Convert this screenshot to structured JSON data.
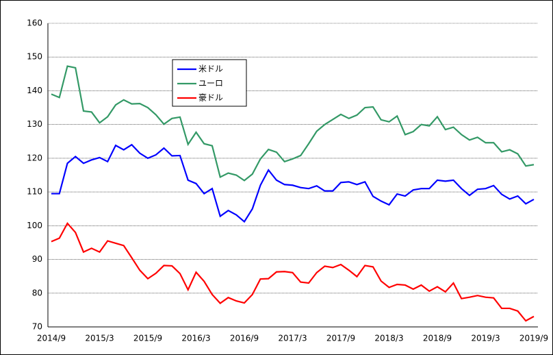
{
  "chart_data": {
    "type": "line",
    "categories": [
      "2014/9",
      null,
      null,
      null,
      null,
      null,
      "2015/3",
      null,
      null,
      null,
      null,
      null,
      "2015/9",
      null,
      null,
      null,
      null,
      null,
      "2016/3",
      null,
      null,
      null,
      null,
      null,
      "2016/9",
      null,
      null,
      null,
      null,
      null,
      "2017/3",
      null,
      null,
      null,
      null,
      null,
      "2017/9",
      null,
      null,
      null,
      null,
      null,
      "2018/3",
      null,
      null,
      null,
      null,
      null,
      "2018/9",
      null,
      null,
      null,
      null,
      null,
      "2019/3",
      null,
      null,
      null,
      null,
      null,
      "2019/9"
    ],
    "series": [
      {
        "name": "米ドル",
        "color": "#0000ff",
        "values": [
          109.5,
          109.5,
          118.5,
          120.5,
          118.5,
          119.5,
          120.2,
          119,
          123.8,
          122.5,
          124,
          121.5,
          120,
          121,
          123,
          120.7,
          120.8,
          113.5,
          112.5,
          109.5,
          111,
          102.8,
          104.5,
          103.2,
          101.2,
          105,
          112,
          116.5,
          113.5,
          112.2,
          112,
          111.3,
          111,
          111.8,
          110.3,
          110.3,
          112.8,
          113,
          112.2,
          113,
          108.7,
          107.3,
          106.2,
          109.4,
          108.8,
          110.6,
          111,
          111,
          113.5,
          113.2,
          113.5,
          111,
          109,
          110.8,
          111,
          111.9,
          109.3,
          107.9,
          108.8,
          106.5,
          107.8
        ]
      },
      {
        "name": "ユーロ",
        "color": "#339966",
        "values": [
          139,
          138,
          147.3,
          146.8,
          134,
          133.7,
          130.5,
          132.3,
          135.8,
          137.3,
          136.1,
          136.2,
          135,
          132.9,
          130.1,
          131.8,
          132.2,
          124.1,
          127.7,
          124.3,
          123.7,
          114.4,
          115.6,
          115,
          113.4,
          115.3,
          119.8,
          122.6,
          121.8,
          119,
          119.8,
          120.8,
          124.3,
          128,
          130,
          131.5,
          133,
          131.8,
          132.8,
          135,
          135.2,
          131.4,
          130.8,
          132.5,
          127,
          127.9,
          130,
          129.6,
          132.3,
          128.5,
          129.2,
          127,
          125.4,
          126.2,
          124.6,
          124.6,
          121.9,
          122.5,
          121.3,
          117.7,
          118.1
        ]
      },
      {
        "name": "豪ドル",
        "color": "#ff0000",
        "values": [
          95.3,
          96.3,
          100.7,
          98,
          92.2,
          93.3,
          92.2,
          95.5,
          94.8,
          94.1,
          90.5,
          86.8,
          84.3,
          85.9,
          88.2,
          88.1,
          85.8,
          81,
          86.2,
          83.5,
          79.6,
          77,
          78.7,
          77.7,
          77.1,
          79.6,
          84.2,
          84.3,
          86.3,
          86.4,
          86.1,
          83.3,
          83,
          86.1,
          88,
          87.6,
          88.5,
          86.8,
          84.9,
          88.2,
          87.8,
          83.6,
          81.7,
          82.6,
          82.4,
          81.2,
          82.4,
          80.6,
          81.9,
          80.4,
          83,
          78.4,
          78.8,
          79.3,
          78.8,
          78.6,
          75.5,
          75.5,
          74.7,
          71.8,
          73.1
        ]
      }
    ],
    "ylim": [
      70,
      160
    ],
    "yticks": [
      70,
      80,
      90,
      100,
      110,
      120,
      130,
      140,
      150,
      160
    ],
    "grid": true
  }
}
